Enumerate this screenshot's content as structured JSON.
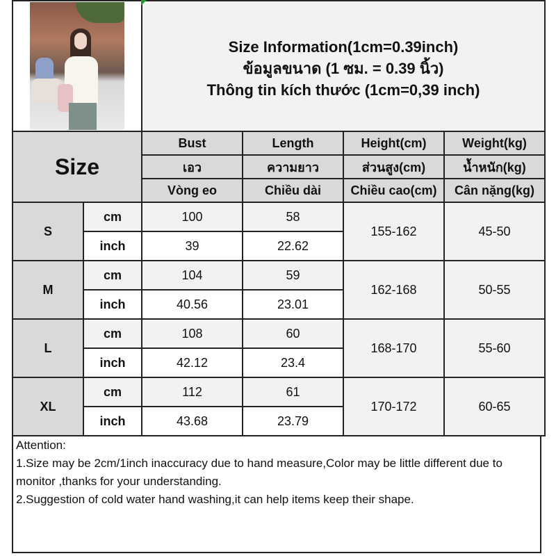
{
  "title_lines": [
    "Size Information(1cm=0.39inch)",
    "ข้อมูลขนาด (1 ซม. = 0.39 นิ้ว)",
    "Thông tin kích thước (1cm=0,39 inch)"
  ],
  "size_header": "Size",
  "columns": [
    {
      "en": "Bust",
      "th": "เอว",
      "vi": "Vòng eo"
    },
    {
      "en": "Length",
      "th": "ความยาว",
      "vi": "Chiều dài"
    },
    {
      "en": "Height(cm)",
      "th": "ส่วนสูง(cm)",
      "vi": "Chiều cao(cm)"
    },
    {
      "en": "Weight(kg)",
      "th": "น้ำหนัก(kg)",
      "vi": "Cân nặng(kg)"
    }
  ],
  "units": {
    "cm": "cm",
    "inch": "inch"
  },
  "rows": [
    {
      "size": "S",
      "cm": {
        "bust": "100",
        "length": "58"
      },
      "inch": {
        "bust": "39",
        "length": "22.62"
      },
      "height": "155-162",
      "weight": "45-50"
    },
    {
      "size": "M",
      "cm": {
        "bust": "104",
        "length": "59"
      },
      "inch": {
        "bust": "40.56",
        "length": "23.01"
      },
      "height": "162-168",
      "weight": "50-55"
    },
    {
      "size": "L",
      "cm": {
        "bust": "108",
        "length": "60"
      },
      "inch": {
        "bust": "42.12",
        "length": "23.4"
      },
      "height": "168-170",
      "weight": "55-60"
    },
    {
      "size": "XL",
      "cm": {
        "bust": "112",
        "length": "61"
      },
      "inch": {
        "bust": "43.68",
        "length": "23.79"
      },
      "height": "170-172",
      "weight": "60-65"
    }
  ],
  "attention": {
    "heading": "Attention:",
    "lines": [
      "1.Size may be 2cm/1inch inaccuracy due to hand measure,Color may be little different due to monitor ,thanks for your understanding.",
      "2.Suggestion of cold water hand washing,it can help items keep their shape."
    ]
  },
  "colors": {
    "header_gray": "#d9d9d9",
    "light_gray": "#f2f2f2",
    "border": "#222222"
  }
}
